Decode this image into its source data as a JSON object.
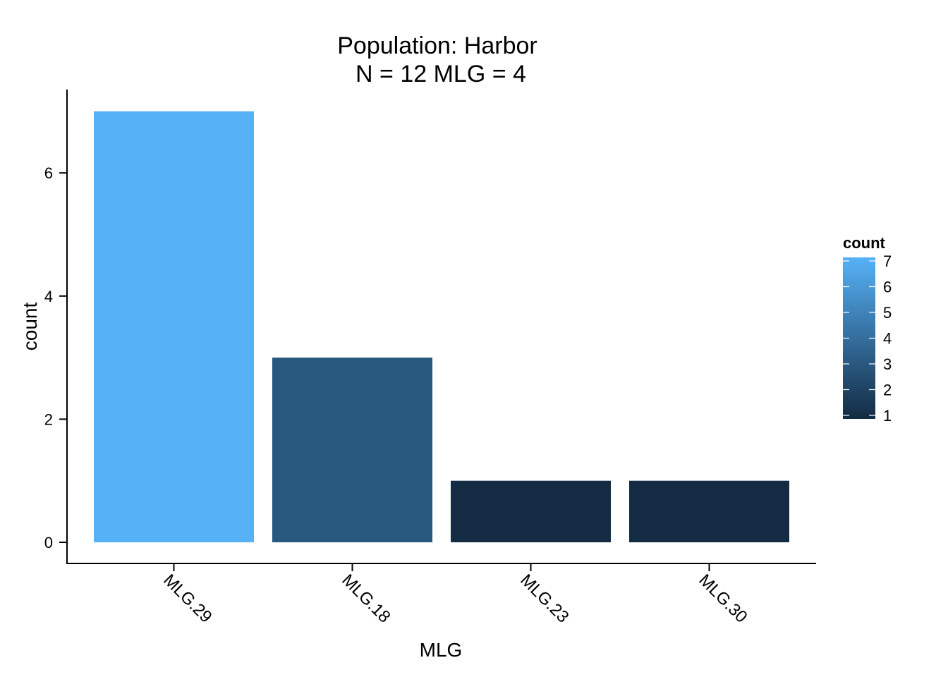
{
  "chart_data": {
    "type": "bar",
    "title": "Population: Harbor",
    "subtitle": "N = 12 MLG = 4",
    "xlabel": "MLG",
    "ylabel": "count",
    "categories": [
      "MLG.29",
      "MLG.18",
      "MLG.23",
      "MLG.30"
    ],
    "values": [
      7,
      3,
      1,
      1
    ],
    "yticks": [
      "0",
      "2",
      "4",
      "6"
    ],
    "ylim": [
      0,
      7
    ],
    "grid": false,
    "legend": {
      "title": "count",
      "placement": "right",
      "labels": [
        "1",
        "2",
        "3",
        "4",
        "5",
        "6",
        "7"
      ],
      "range": [
        1,
        7
      ],
      "color_low": "#132B43",
      "color_high": "#56B1F7"
    }
  }
}
